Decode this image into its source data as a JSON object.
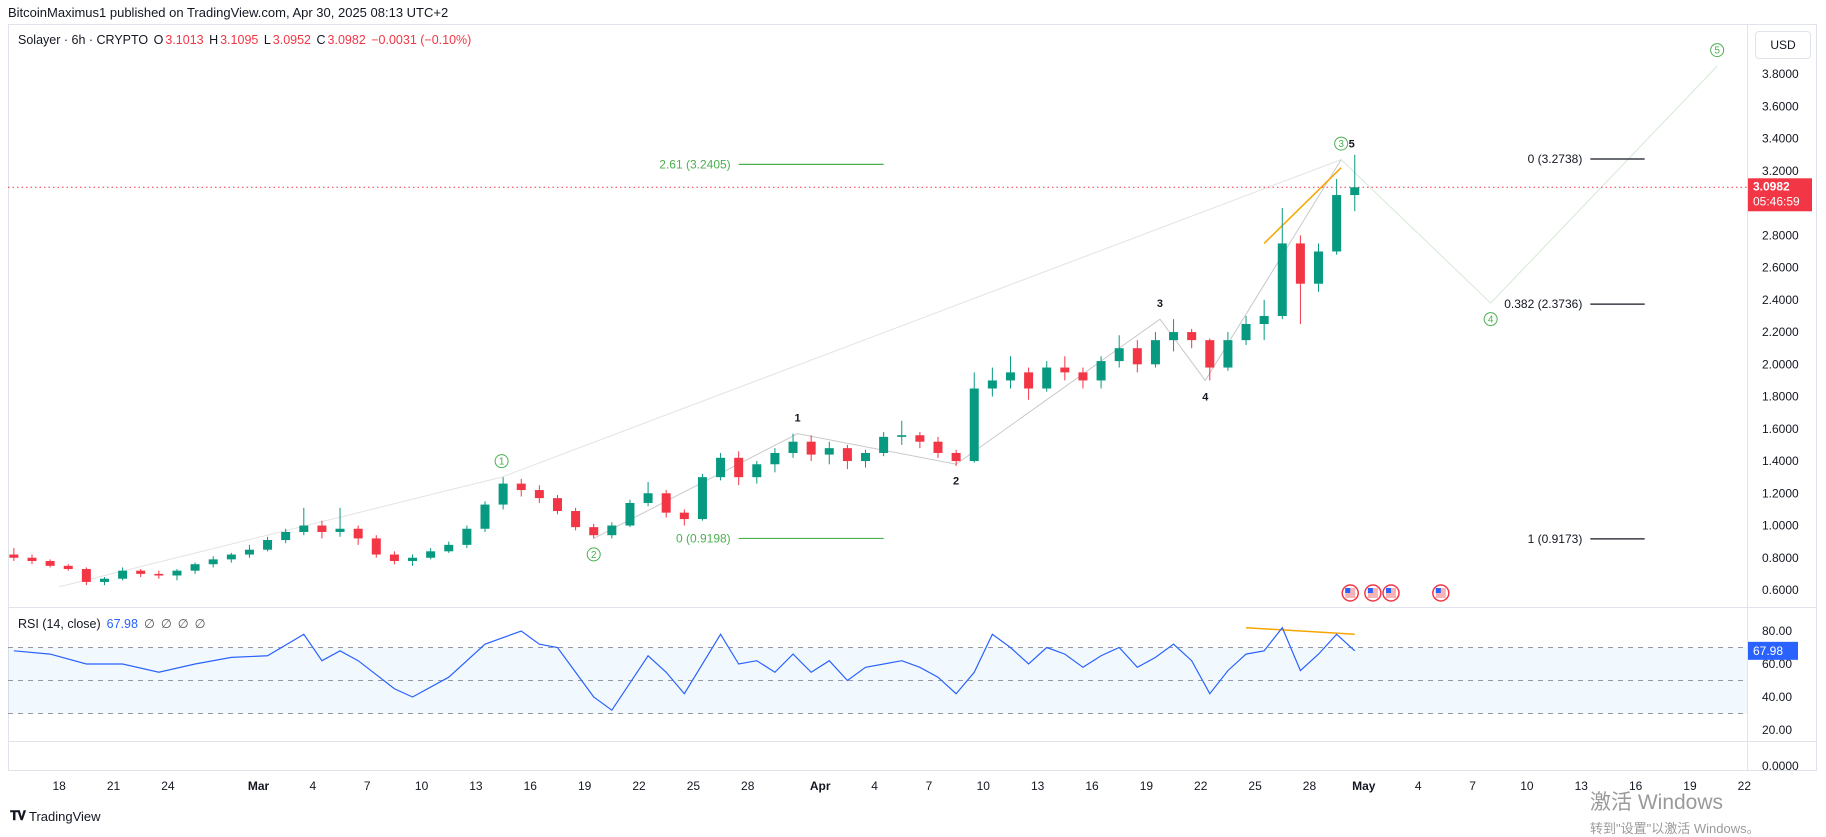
{
  "header": {
    "publisher": "BitcoinMaximus1 published on TradingView.com, Apr 30, 2025 08:13 UTC+2",
    "symbol": "Solayer · 6h · CRYPTO",
    "o_label": "O",
    "o": "3.1013",
    "h_label": "H",
    "h": "3.1095",
    "l_label": "L",
    "l": "3.0952",
    "c_label": "C",
    "c": "3.0982",
    "change": "−0.0031 (−0.10%)"
  },
  "currency": "USD",
  "rsi_legend": {
    "name": "RSI (14, close)",
    "value": "67.98",
    "extras": [
      "∅",
      "∅",
      "∅",
      "∅"
    ]
  },
  "footer": {
    "logo": "TradingView"
  },
  "watermark": {
    "line1": "激活 Windows",
    "line2": "转到\"设置\"以激活 Windows。"
  },
  "colors": {
    "up": "#089981",
    "down": "#f23645",
    "rsi": "#2962ff",
    "wave": "#4caf50",
    "trendline": "#f7a600",
    "guide": "#d9d9d9"
  },
  "chart_data": [
    {
      "type": "candlestick",
      "title": "Solayer · 6h · CRYPTO",
      "ylim": [
        0.6,
        3.8
      ],
      "price_ticks": [
        "3.8000",
        "3.6000",
        "3.4000",
        "3.2000",
        "2.8000",
        "2.6000",
        "2.4000",
        "2.2000",
        "2.0000",
        "1.8000",
        "1.6000",
        "1.4000",
        "1.2000",
        "1.0000",
        "0.8000",
        "0.6000"
      ],
      "last_price": {
        "value": "3.0982",
        "countdown": "05:46:59"
      },
      "x_ticks": [
        {
          "date": "2025-02-18",
          "label": "18"
        },
        {
          "date": "2025-02-21",
          "label": "21"
        },
        {
          "date": "2025-02-24",
          "label": "24"
        },
        {
          "date": "2025-03-01",
          "label": "Mar",
          "major": true
        },
        {
          "date": "2025-03-04",
          "label": "4"
        },
        {
          "date": "2025-03-07",
          "label": "7"
        },
        {
          "date": "2025-03-10",
          "label": "10"
        },
        {
          "date": "2025-03-13",
          "label": "13"
        },
        {
          "date": "2025-03-16",
          "label": "16"
        },
        {
          "date": "2025-03-19",
          "label": "19"
        },
        {
          "date": "2025-03-22",
          "label": "22"
        },
        {
          "date": "2025-03-25",
          "label": "25"
        },
        {
          "date": "2025-03-28",
          "label": "28"
        },
        {
          "date": "2025-04-01",
          "label": "Apr",
          "major": true
        },
        {
          "date": "2025-04-04",
          "label": "4"
        },
        {
          "date": "2025-04-07",
          "label": "7"
        },
        {
          "date": "2025-04-10",
          "label": "10"
        },
        {
          "date": "2025-04-13",
          "label": "13"
        },
        {
          "date": "2025-04-16",
          "label": "16"
        },
        {
          "date": "2025-04-19",
          "label": "19"
        },
        {
          "date": "2025-04-22",
          "label": "22"
        },
        {
          "date": "2025-04-25",
          "label": "25"
        },
        {
          "date": "2025-04-28",
          "label": "28"
        },
        {
          "date": "2025-05-01",
          "label": "May",
          "major": true
        },
        {
          "date": "2025-05-04",
          "label": "4"
        },
        {
          "date": "2025-05-07",
          "label": "7"
        },
        {
          "date": "2025-05-10",
          "label": "10"
        },
        {
          "date": "2025-05-13",
          "label": "13"
        },
        {
          "date": "2025-05-16",
          "label": "16"
        },
        {
          "date": "2025-05-19",
          "label": "19"
        },
        {
          "date": "2025-05-22",
          "label": "22"
        }
      ],
      "candles_daily_approx_ohlc": [
        [
          "2025-02-15",
          0.82,
          0.86,
          0.78,
          0.8
        ],
        [
          "2025-02-16",
          0.8,
          0.82,
          0.76,
          0.78
        ],
        [
          "2025-02-17",
          0.78,
          0.79,
          0.74,
          0.75
        ],
        [
          "2025-02-18",
          0.75,
          0.76,
          0.72,
          0.73
        ],
        [
          "2025-02-19",
          0.73,
          0.74,
          0.63,
          0.65
        ],
        [
          "2025-02-20",
          0.65,
          0.68,
          0.63,
          0.67
        ],
        [
          "2025-02-21",
          0.67,
          0.74,
          0.66,
          0.72
        ],
        [
          "2025-02-22",
          0.72,
          0.73,
          0.68,
          0.7
        ],
        [
          "2025-02-23",
          0.7,
          0.72,
          0.67,
          0.69
        ],
        [
          "2025-02-24",
          0.69,
          0.73,
          0.66,
          0.72
        ],
        [
          "2025-02-25",
          0.72,
          0.77,
          0.7,
          0.76
        ],
        [
          "2025-02-26",
          0.76,
          0.81,
          0.74,
          0.79
        ],
        [
          "2025-02-27",
          0.79,
          0.83,
          0.77,
          0.82
        ],
        [
          "2025-02-28",
          0.82,
          0.88,
          0.8,
          0.85
        ],
        [
          "2025-03-01",
          0.85,
          0.93,
          0.84,
          0.91
        ],
        [
          "2025-03-02",
          0.91,
          0.98,
          0.89,
          0.96
        ],
        [
          "2025-03-03",
          0.96,
          1.11,
          0.94,
          1.0
        ],
        [
          "2025-03-04",
          1.0,
          1.03,
          0.92,
          0.96
        ],
        [
          "2025-03-05",
          0.96,
          1.11,
          0.93,
          0.98
        ],
        [
          "2025-03-06",
          0.98,
          1.0,
          0.88,
          0.92
        ],
        [
          "2025-03-07",
          0.92,
          0.94,
          0.8,
          0.82
        ],
        [
          "2025-03-08",
          0.82,
          0.84,
          0.76,
          0.78
        ],
        [
          "2025-03-09",
          0.78,
          0.82,
          0.75,
          0.8
        ],
        [
          "2025-03-10",
          0.8,
          0.86,
          0.79,
          0.84
        ],
        [
          "2025-03-11",
          0.84,
          0.9,
          0.83,
          0.88
        ],
        [
          "2025-03-12",
          0.88,
          1.0,
          0.86,
          0.98
        ],
        [
          "2025-03-13",
          0.98,
          1.15,
          0.96,
          1.13
        ],
        [
          "2025-03-14",
          1.13,
          1.3,
          1.1,
          1.26
        ],
        [
          "2025-03-15",
          1.26,
          1.29,
          1.18,
          1.22
        ],
        [
          "2025-03-16",
          1.22,
          1.25,
          1.14,
          1.17
        ],
        [
          "2025-03-17",
          1.17,
          1.19,
          1.07,
          1.09
        ],
        [
          "2025-03-18",
          1.09,
          1.11,
          0.97,
          0.99
        ],
        [
          "2025-03-19",
          0.99,
          1.01,
          0.92,
          0.94
        ],
        [
          "2025-03-20",
          0.94,
          1.02,
          0.92,
          1.0
        ],
        [
          "2025-03-21",
          1.0,
          1.16,
          0.99,
          1.14
        ],
        [
          "2025-03-22",
          1.14,
          1.27,
          1.12,
          1.2
        ],
        [
          "2025-03-23",
          1.2,
          1.22,
          1.05,
          1.08
        ],
        [
          "2025-03-24",
          1.08,
          1.1,
          1.0,
          1.04
        ],
        [
          "2025-03-25",
          1.04,
          1.32,
          1.03,
          1.3
        ],
        [
          "2025-03-26",
          1.3,
          1.45,
          1.28,
          1.42
        ],
        [
          "2025-03-27",
          1.42,
          1.46,
          1.25,
          1.3
        ],
        [
          "2025-03-28",
          1.3,
          1.4,
          1.26,
          1.38
        ],
        [
          "2025-03-29",
          1.38,
          1.48,
          1.33,
          1.45
        ],
        [
          "2025-03-30",
          1.45,
          1.57,
          1.42,
          1.52
        ],
        [
          "2025-03-31",
          1.52,
          1.56,
          1.4,
          1.44
        ],
        [
          "2025-04-01",
          1.44,
          1.52,
          1.38,
          1.48
        ],
        [
          "2025-04-02",
          1.48,
          1.5,
          1.35,
          1.4
        ],
        [
          "2025-04-03",
          1.4,
          1.47,
          1.36,
          1.45
        ],
        [
          "2025-04-04",
          1.45,
          1.58,
          1.43,
          1.55
        ],
        [
          "2025-04-05",
          1.55,
          1.65,
          1.5,
          1.56
        ],
        [
          "2025-04-06",
          1.56,
          1.58,
          1.48,
          1.52
        ],
        [
          "2025-04-07",
          1.52,
          1.55,
          1.42,
          1.45
        ],
        [
          "2025-04-08",
          1.45,
          1.47,
          1.37,
          1.4
        ],
        [
          "2025-04-09",
          1.4,
          1.95,
          1.39,
          1.85
        ],
        [
          "2025-04-10",
          1.85,
          1.98,
          1.8,
          1.9
        ],
        [
          "2025-04-11",
          1.9,
          2.05,
          1.85,
          1.95
        ],
        [
          "2025-04-12",
          1.95,
          1.98,
          1.78,
          1.85
        ],
        [
          "2025-04-13",
          1.85,
          2.02,
          1.83,
          1.98
        ],
        [
          "2025-04-14",
          1.98,
          2.05,
          1.9,
          1.95
        ],
        [
          "2025-04-15",
          1.95,
          1.98,
          1.85,
          1.9
        ],
        [
          "2025-04-16",
          1.9,
          2.05,
          1.85,
          2.02
        ],
        [
          "2025-04-17",
          2.02,
          2.18,
          1.98,
          2.1
        ],
        [
          "2025-04-18",
          2.1,
          2.15,
          1.95,
          2.0
        ],
        [
          "2025-04-19",
          2.0,
          2.2,
          1.98,
          2.15
        ],
        [
          "2025-04-20",
          2.15,
          2.28,
          2.08,
          2.2
        ],
        [
          "2025-04-21",
          2.2,
          2.22,
          2.1,
          2.15
        ],
        [
          "2025-04-22",
          2.15,
          2.16,
          1.9,
          1.98
        ],
        [
          "2025-04-23",
          1.98,
          2.2,
          1.96,
          2.15
        ],
        [
          "2025-04-24",
          2.15,
          2.3,
          2.12,
          2.25
        ],
        [
          "2025-04-25",
          2.25,
          2.4,
          2.15,
          2.3
        ],
        [
          "2025-04-26",
          2.3,
          2.97,
          2.28,
          2.75
        ],
        [
          "2025-04-27",
          2.75,
          2.8,
          2.25,
          2.5
        ],
        [
          "2025-04-28",
          2.5,
          2.75,
          2.45,
          2.7
        ],
        [
          "2025-04-29",
          2.7,
          3.15,
          2.68,
          3.05
        ],
        [
          "2025-04-30",
          3.05,
          3.3,
          2.95,
          3.0982
        ]
      ],
      "fib_levels": [
        {
          "label": "2.61 (3.2405)",
          "price": 3.2405,
          "from": "2025-03-27",
          "to": "2025-04-04",
          "color": "#4caf50"
        },
        {
          "label": "0 (0.9198)",
          "price": 0.9198,
          "from": "2025-03-27",
          "to": "2025-04-04",
          "color": "#4caf50"
        },
        {
          "label": "0 (3.2738)",
          "price": 3.2738,
          "from": "2025-05-13T12:00",
          "to": "2025-05-16T12:00",
          "color": "#131722"
        },
        {
          "label": "0.382 (2.3736)",
          "price": 2.3736,
          "from": "2025-05-13T12:00",
          "to": "2025-05-16T12:00",
          "color": "#131722"
        },
        {
          "label": "1 (0.9173)",
          "price": 0.9173,
          "from": "2025-05-13T12:00",
          "to": "2025-05-16T12:00",
          "color": "#131722"
        }
      ],
      "major_waves": [
        {
          "label": "1",
          "date": "2025-03-14T10:00",
          "price": 1.3,
          "pos": "above"
        },
        {
          "label": "2",
          "date": "2025-03-19T12:00",
          "price": 0.92,
          "pos": "below"
        },
        {
          "label": "3",
          "date": "2025-04-29T18:00",
          "price": 3.27,
          "pos": "above"
        },
        {
          "label": "4",
          "date": "2025-05-08T00:00",
          "price": 2.38,
          "pos": "below"
        },
        {
          "label": "5",
          "date": "2025-05-20T12:00",
          "price": 3.85,
          "pos": "above"
        }
      ],
      "minor_waves": [
        {
          "label": "1",
          "date": "2025-03-30T18:00",
          "price": 1.57,
          "pos": "above"
        },
        {
          "label": "2",
          "date": "2025-04-08T12:00",
          "price": 1.38,
          "pos": "below"
        },
        {
          "label": "3",
          "date": "2025-04-19T18:00",
          "price": 2.28,
          "pos": "above"
        },
        {
          "label": "4",
          "date": "2025-04-22T06:00",
          "price": 1.9,
          "pos": "below"
        },
        {
          "label": "5",
          "date": "2025-04-30T00:00",
          "price": 3.27,
          "pos": "above"
        }
      ],
      "minor_wave_path": [
        [
          "2025-03-19T12:00",
          0.92
        ],
        [
          "2025-03-30T18:00",
          1.57
        ],
        [
          "2025-04-08T12:00",
          1.38
        ],
        [
          "2025-04-19T18:00",
          2.28
        ],
        [
          "2025-04-22T06:00",
          1.9
        ],
        [
          "2025-04-29T18:00",
          3.27
        ]
      ],
      "projection_path": [
        [
          "2025-04-29T18:00",
          3.27
        ],
        [
          "2025-05-08T00:00",
          2.38
        ],
        [
          "2025-05-20T12:00",
          3.85
        ]
      ],
      "guide_lines": [
        [
          [
            "2025-02-18T00:00",
            0.62
          ],
          [
            "2025-03-14T10:00",
            1.3
          ]
        ],
        [
          [
            "2025-03-14T10:00",
            1.3
          ],
          [
            "2025-04-29T18:00",
            3.27
          ]
        ]
      ],
      "trendline": [
        [
          "2025-04-25T12:00",
          2.75
        ],
        [
          "2025-04-29T18:00",
          3.22
        ]
      ],
      "event_flags": [
        "2025-04-30T06:00",
        "2025-05-01T12:00",
        "2025-05-02T12:00",
        "2025-05-05T06:00"
      ]
    },
    {
      "type": "line",
      "title": "RSI (14, close)",
      "ylim": [
        20,
        90
      ],
      "ticks": [
        "80.00",
        "60.00",
        "40.00",
        "20.00"
      ],
      "bands": [
        70,
        50,
        30
      ],
      "bottom_pane_tick": "0.0000",
      "last_value": "67.98",
      "series_approx": [
        [
          "2025-02-15",
          68
        ],
        [
          "2025-02-17",
          66
        ],
        [
          "2025-02-19",
          60
        ],
        [
          "2025-02-21",
          60
        ],
        [
          "2025-02-23",
          55
        ],
        [
          "2025-02-25",
          60
        ],
        [
          "2025-02-27",
          64
        ],
        [
          "2025-03-01",
          65
        ],
        [
          "2025-03-03",
          78
        ],
        [
          "2025-03-04",
          62
        ],
        [
          "2025-03-05",
          68
        ],
        [
          "2025-03-06",
          62
        ],
        [
          "2025-03-08",
          45
        ],
        [
          "2025-03-09",
          40
        ],
        [
          "2025-03-11",
          52
        ],
        [
          "2025-03-13",
          72
        ],
        [
          "2025-03-15",
          80
        ],
        [
          "2025-03-16",
          72
        ],
        [
          "2025-03-17",
          70
        ],
        [
          "2025-03-18",
          55
        ],
        [
          "2025-03-19",
          40
        ],
        [
          "2025-03-20",
          32
        ],
        [
          "2025-03-22",
          65
        ],
        [
          "2025-03-23",
          55
        ],
        [
          "2025-03-24",
          42
        ],
        [
          "2025-03-26",
          78
        ],
        [
          "2025-03-27",
          60
        ],
        [
          "2025-03-28",
          62
        ],
        [
          "2025-03-29",
          55
        ],
        [
          "2025-03-30",
          66
        ],
        [
          "2025-03-31",
          55
        ],
        [
          "2025-04-01",
          62
        ],
        [
          "2025-04-02",
          50
        ],
        [
          "2025-04-03",
          58
        ],
        [
          "2025-04-05",
          62
        ],
        [
          "2025-04-06",
          58
        ],
        [
          "2025-04-07",
          52
        ],
        [
          "2025-04-08",
          42
        ],
        [
          "2025-04-09",
          55
        ],
        [
          "2025-04-10",
          78
        ],
        [
          "2025-04-11",
          70
        ],
        [
          "2025-04-12",
          60
        ],
        [
          "2025-04-13",
          70
        ],
        [
          "2025-04-14",
          66
        ],
        [
          "2025-04-15",
          58
        ],
        [
          "2025-04-16",
          65
        ],
        [
          "2025-04-17",
          70
        ],
        [
          "2025-04-18",
          58
        ],
        [
          "2025-04-19",
          64
        ],
        [
          "2025-04-20",
          72
        ],
        [
          "2025-04-21",
          62
        ],
        [
          "2025-04-22",
          42
        ],
        [
          "2025-04-23",
          56
        ],
        [
          "2025-04-24",
          66
        ],
        [
          "2025-04-25",
          68
        ],
        [
          "2025-04-26",
          82
        ],
        [
          "2025-04-27",
          56
        ],
        [
          "2025-04-28",
          66
        ],
        [
          "2025-04-29",
          78
        ],
        [
          "2025-04-30",
          67.98
        ]
      ],
      "trendline": [
        [
          "2025-04-24T12:00",
          82
        ],
        [
          "2025-04-30T12:00",
          78
        ]
      ]
    }
  ]
}
